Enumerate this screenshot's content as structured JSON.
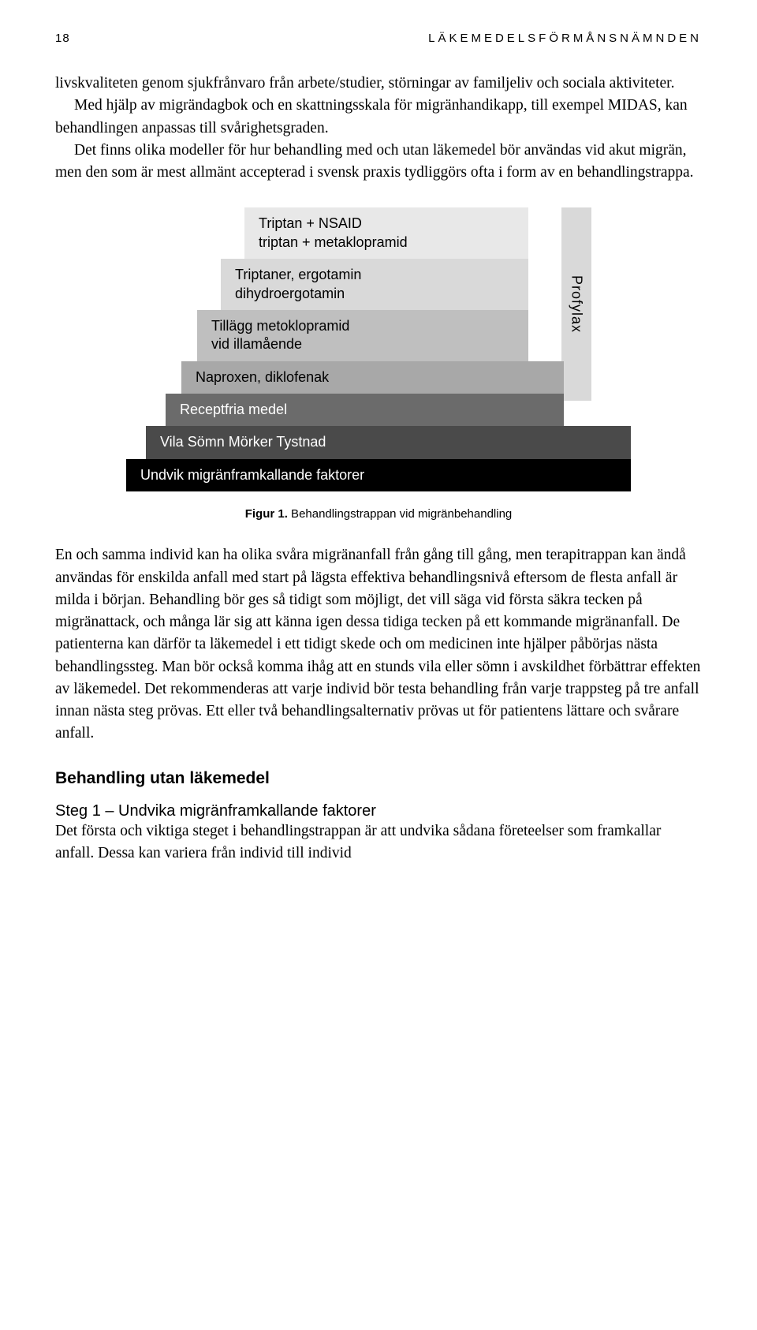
{
  "header": {
    "page_number": "18",
    "running_title": "LÄKEMEDELSFÖRMÅNSNÄMNDEN"
  },
  "para1": "livskvaliteten genom sjukfrånvaro från arbete/studier, störningar av familjeliv och sociala aktiviteter.",
  "para2": "Med hjälp av migrändagbok och en skattningsskala för migränhandikapp, till exempel MIDAS, kan behandlingen anpassas till svårighetsgraden.",
  "para3": "Det finns olika modeller för hur behandling med och utan läkemedel bör användas vid akut migrän, men den som är mest allmänt accepterad i svensk praxis tydliggörs ofta i form av en behandlingstrappa.",
  "diagram": {
    "type": "stair-step",
    "profylax_label": "Profylax",
    "profylax_bg": "#d9d9d9",
    "steps": [
      {
        "text": "Triptan + NSAID\ntriptan + metaklopramid",
        "bg": "#e8e8e8",
        "fg": "#000000"
      },
      {
        "text": "Triptaner, ergotamin\ndihydroergotamin",
        "bg": "#d9d9d9",
        "fg": "#000000"
      },
      {
        "text": "Tillägg metoklopramid\nvid illamående",
        "bg": "#bfbfbf",
        "fg": "#000000"
      },
      {
        "text": "Naproxen, diklofenak",
        "bg": "#a8a8a8",
        "fg": "#000000"
      },
      {
        "text": "Receptfria medel",
        "bg": "#6b6b6b",
        "fg": "#ffffff"
      },
      {
        "text": "Vila  Sömn  Mörker  Tystnad",
        "bg": "#4a4a4a",
        "fg": "#ffffff"
      },
      {
        "text": "Undvik migränframkallande faktorer",
        "bg": "#000000",
        "fg": "#ffffff"
      }
    ],
    "caption_bold": "Figur 1.",
    "caption_rest": " Behandlingstrappan vid migränbehandling"
  },
  "para4": "En och samma individ kan ha olika svåra migränanfall från gång till gång, men terapitrappan kan ändå användas för enskilda anfall med start på lägsta effektiva behandlingsnivå eftersom de flesta anfall är milda i början. Behandling bör ges så tidigt som möjligt, det vill säga vid första säkra tecken på migränattack, och många lär sig att känna igen dessa tidiga tecken på ett kommande migränanfall. De patienterna kan därför ta läkemedel i ett tidigt skede och om medicinen inte hjälper påbörjas nästa behandlingssteg. Man bör också komma ihåg att en stunds vila eller sömn i avskildhet förbättrar effekten av läkemedel. Det rekommenderas att varje individ bör testa behandling från varje trappsteg på tre anfall innan nästa steg prövas. Ett eller två behandlingsalternativ prövas ut för patientens lättare och svårare anfall.",
  "section_heading": "Behandling utan läkemedel",
  "subheading": "Steg 1 – Undvika migränframkallande faktorer",
  "para5": "Det första och viktiga steget i behandlingstrappan är att undvika sådana företeelser som framkallar anfall. Dessa kan variera från individ till individ"
}
